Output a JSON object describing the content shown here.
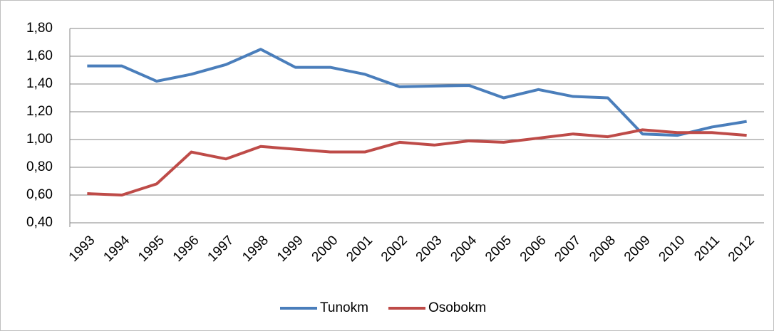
{
  "chart_data": {
    "type": "line",
    "categories": [
      "1993",
      "1994",
      "1995",
      "1996",
      "1997",
      "1998",
      "1999",
      "2000",
      "2001",
      "2002",
      "2003",
      "2004",
      "2005",
      "2006",
      "2007",
      "2008",
      "2009",
      "2010",
      "2011",
      "2012"
    ],
    "series": [
      {
        "name": "Tunokm",
        "color": "#4a7ebb",
        "values": [
          1.53,
          1.53,
          1.42,
          1.47,
          1.54,
          1.65,
          1.52,
          1.52,
          1.47,
          1.38,
          1.385,
          1.39,
          1.3,
          1.36,
          1.31,
          1.3,
          1.04,
          1.03,
          1.09,
          1.13
        ]
      },
      {
        "name": "Osobokm",
        "color": "#be4b48",
        "values": [
          0.61,
          0.6,
          0.68,
          0.91,
          0.86,
          0.95,
          0.93,
          0.91,
          0.91,
          0.98,
          0.96,
          0.99,
          0.98,
          1.01,
          1.04,
          1.02,
          1.07,
          1.05,
          1.05,
          1.03
        ]
      }
    ],
    "ylim": [
      0.4,
      1.8
    ],
    "yticks": [
      {
        "value": 0.4,
        "label": "0,40"
      },
      {
        "value": 0.6,
        "label": "0,60"
      },
      {
        "value": 0.8,
        "label": "0,80"
      },
      {
        "value": 1.0,
        "label": "1,00"
      },
      {
        "value": 1.2,
        "label": "1,20"
      },
      {
        "value": 1.4,
        "label": "1,40"
      },
      {
        "value": 1.6,
        "label": "1,60"
      },
      {
        "value": 1.8,
        "label": "1,80"
      }
    ],
    "grid": true,
    "legend": "bottom"
  }
}
